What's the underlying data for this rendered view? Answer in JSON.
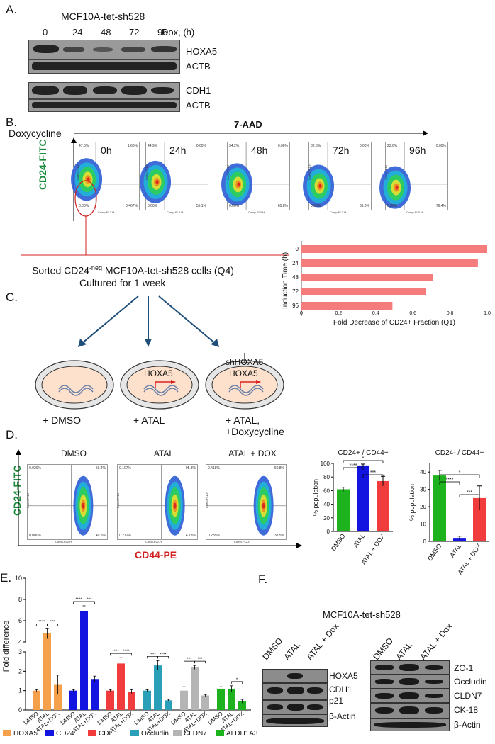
{
  "panelA": {
    "label": "A.",
    "cell_line": "MCF10A-tet-sh528",
    "timepoints": [
      "0",
      "24",
      "48",
      "72",
      "96"
    ],
    "dox_label": "Dox, (h)",
    "blot1_labels": [
      "HOXA5",
      "ACTB"
    ],
    "blot2_labels": [
      "CDH1",
      "ACTB"
    ]
  },
  "panelB": {
    "label": "B.",
    "doxycycline": "Doxycycline",
    "x_marker": "7-AAD",
    "y_marker": "CD24-FITC",
    "plots": [
      {
        "time": "0h",
        "q1": "47.0%",
        "q2": "1.66%",
        "q3": "0.00%",
        "q4": "0.467%"
      },
      {
        "time": "24h",
        "q1": "44.9%",
        "q2": "0.00%",
        "q3": "0.00%",
        "q4": "55.1%"
      },
      {
        "time": "48h",
        "q1": "34.2%",
        "q2": "0.00%",
        "q3": "0.00%",
        "q4": "65.8%"
      },
      {
        "time": "72h",
        "q1": "32.0%",
        "q2": "0.00%",
        "q3": "0.00%",
        "q4": "68.0%"
      },
      {
        "time": "96h",
        "q1": "23.6%",
        "q2": "0.00%",
        "q3": "0.00%",
        "q4": "76.4%"
      }
    ],
    "axis_y": "Comp-FL1-H",
    "axis_x": "Comp-FL3-H",
    "sorted_line1": "Sorted CD24",
    "sorted_sup": "-neg",
    "sorted_line1b": " MCF10A-tet-sh528  cells (Q4)",
    "sorted_line2": "Cultured   for 1 week"
  },
  "panelC": {
    "label": "C.",
    "conditions": [
      "+ DMSO",
      "+ ATAL",
      "+ ATAL,",
      "+Doxycycline"
    ],
    "gene": "HOXA5",
    "shrna": "shHOXA5"
  },
  "panelD": {
    "label": "D.",
    "flow_titles": [
      "DMSO",
      "ATAL",
      "ATAL + DOX"
    ],
    "x_marker": "CD44-PE",
    "y_marker": "CD24-FITC",
    "flow_quadrants": [
      {
        "q1": "0.020%",
        "q2": "59.4%",
        "q3": "0.000%",
        "q4": "40.5%"
      },
      {
        "q1": "0.107%",
        "q2": "95.8%",
        "q3": "0.212%",
        "q4": "4.13%"
      },
      {
        "q1": "0.418%",
        "q2": "60.8%",
        "q3": "0.235%",
        "q4": "38.5%"
      }
    ],
    "axis_y": "Comp-FL1-H",
    "axis_x": "Comp-FL2-H"
  },
  "panelE": {
    "label": "E.",
    "ylabel": "Fold difference",
    "xticks": [
      "DMSO",
      "ATAL",
      "ATAL+DOX"
    ],
    "stars": [
      "****",
      "***",
      "****",
      "***",
      "****",
      "****",
      "****",
      "****",
      "***",
      "***",
      "*"
    ]
  },
  "panelF": {
    "label": "F.",
    "title": "MCF10A-tet-sh528",
    "lanes": [
      "DMSO",
      "ATAL",
      "ATAL + Dox"
    ],
    "left_labels": [
      "HOXA5",
      "CDH1",
      "p21",
      "β-Actin"
    ],
    "right_labels": [
      "ZO-1",
      "Occludin",
      "CLDN7",
      "CK-18",
      "β-Actin"
    ]
  },
  "colors": {
    "green": "#1fb21f",
    "blue": "#1414e0",
    "red": "#f03c3c",
    "orange": "#f5a04a",
    "teal": "#2aa0b8",
    "gray": "#b5b5b5",
    "bar_pink": "#f47c7c"
  },
  "chart_data": [
    {
      "type": "bar",
      "orientation": "horizontal",
      "categories": [
        "0",
        "24",
        "48",
        "72",
        "96"
      ],
      "values": [
        1.0,
        0.95,
        0.71,
        0.67,
        0.49
      ],
      "xlabel": "Fold Decrease of CD24+ Fraction  (Q1)",
      "ylabel": "Induction Time (h)",
      "xlim": [
        0,
        1.0
      ],
      "xticks": [
        "0",
        "0.2",
        "0.4",
        "0.6",
        "0.8",
        "1.0"
      ]
    },
    {
      "type": "bar",
      "title": "CD24+ / CD44+",
      "categories": [
        "DMSO",
        "ATAL",
        "ATAL + DOX"
      ],
      "values": [
        62,
        97,
        74
      ],
      "errors": [
        3,
        2,
        7
      ],
      "ylabel": "% population",
      "ylim": [
        0,
        100
      ],
      "yticks": [
        "0",
        "20",
        "40",
        "60",
        "80",
        "100"
      ],
      "stars": [
        "****",
        "***",
        "*"
      ]
    },
    {
      "type": "bar",
      "title": "CD24- / CD44+",
      "categories": [
        "DMSO",
        "ATAL",
        "ATAL + DOX"
      ],
      "values": [
        38,
        2,
        25
      ],
      "errors": [
        3,
        1,
        7
      ],
      "ylabel": "% population",
      "ylim": [
        0,
        45
      ],
      "yticks": [
        "0",
        "10",
        "20",
        "30",
        "40"
      ],
      "stars": [
        "****",
        "***",
        "*"
      ]
    },
    {
      "type": "bar",
      "ylabel": "Fold difference",
      "yticks": [
        "0",
        "1",
        "2",
        "3",
        "4",
        "6",
        "8",
        "10"
      ],
      "categories": [
        "DMSO",
        "ATAL",
        "ATAL+DOX"
      ],
      "series": [
        {
          "name": "HOXA5",
          "values": [
            1.0,
            4.8,
            1.3
          ],
          "errors": [
            0.05,
            0.5,
            0.5
          ]
        },
        {
          "name": "CD24",
          "values": [
            1.0,
            6.9,
            1.6
          ],
          "errors": [
            0.05,
            0.5,
            0.15
          ]
        },
        {
          "name": "CDH1",
          "values": [
            1.0,
            2.4,
            0.95
          ],
          "errors": [
            0.05,
            0.3,
            0.1
          ]
        },
        {
          "name": "Occludin",
          "values": [
            1.0,
            2.3,
            0.5
          ],
          "errors": [
            0.05,
            0.25,
            0.05
          ]
        },
        {
          "name": "CLDN7",
          "values": [
            1.0,
            2.2,
            0.75
          ],
          "errors": [
            0.2,
            0.1,
            0.05
          ]
        },
        {
          "name": "ALDH1A3",
          "values": [
            1.1,
            1.1,
            0.45
          ],
          "errors": [
            0.1,
            0.15,
            0.1
          ]
        }
      ]
    }
  ]
}
